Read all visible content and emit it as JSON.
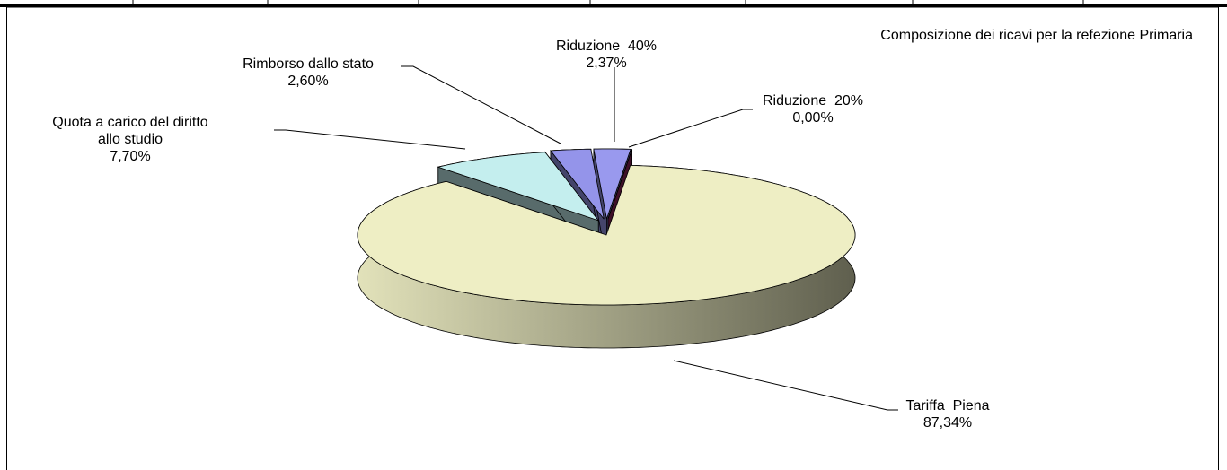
{
  "chart_data": {
    "type": "pie3d",
    "title": "Composizione dei ricavi per la refezione Primaria",
    "categories": [
      "Riduzione  40%",
      "Riduzione  20%",
      "Tariffa  Piena",
      "Quota a carico del diritto allo studio",
      "Rimborso dallo stato"
    ],
    "values": [
      2.37,
      0.0,
      87.34,
      7.7,
      2.6
    ],
    "value_labels": [
      "2,37%",
      "0,00%",
      "87,34%",
      "7,70%",
      "2,60%"
    ],
    "colors": [
      "#9999ee",
      "#8a2458",
      "#eeeec4",
      "#c4eeee",
      "#9494ea"
    ]
  }
}
